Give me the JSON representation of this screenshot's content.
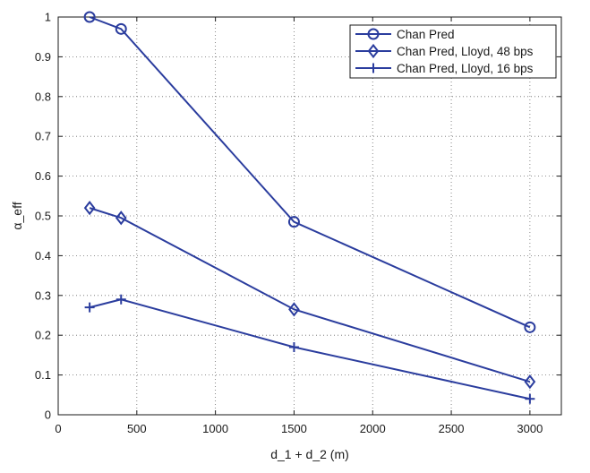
{
  "chart_data": {
    "type": "line",
    "title": "",
    "xlabel": "d_1 + d_2 (m)",
    "ylabel": "α_eff",
    "xlim": [
      0,
      3200
    ],
    "ylim": [
      0,
      1
    ],
    "xticks": [
      0,
      500,
      1000,
      1500,
      2000,
      2500,
      3000
    ],
    "yticks": [
      0,
      0.1,
      0.2,
      0.3,
      0.4,
      0.5,
      0.6,
      0.7,
      0.8,
      0.9,
      1
    ],
    "grid": true,
    "legend_position": "top-right",
    "line_color": "#2b3d9e",
    "series": [
      {
        "name": "Chan Pred",
        "marker": "circle",
        "x": [
          200,
          400,
          1500,
          3000
        ],
        "y": [
          1.0,
          0.97,
          0.485,
          0.22
        ]
      },
      {
        "name": "Chan Pred, Lloyd, 48 bps",
        "marker": "diamond",
        "x": [
          200,
          400,
          1500,
          3000
        ],
        "y": [
          0.52,
          0.495,
          0.265,
          0.083
        ]
      },
      {
        "name": "Chan Pred, Lloyd, 16 bps",
        "marker": "plus",
        "x": [
          200,
          400,
          1500,
          3000
        ],
        "y": [
          0.27,
          0.29,
          0.17,
          0.04
        ]
      }
    ]
  }
}
